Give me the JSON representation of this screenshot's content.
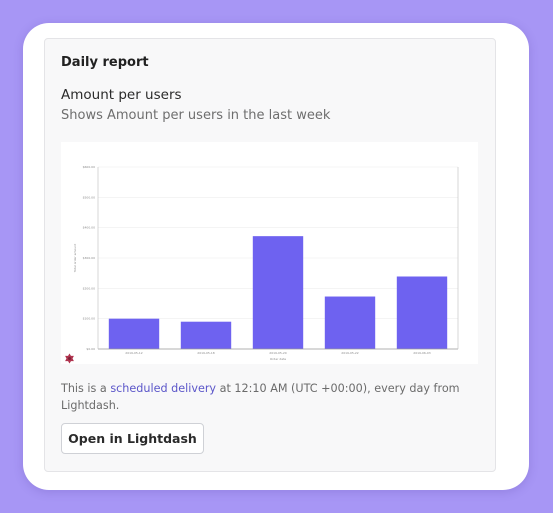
{
  "card": {
    "title": "Daily report",
    "chart_title": "Amount per users",
    "chart_subtitle": "Shows Amount per users in the last week"
  },
  "footer": {
    "prefix": "This is a ",
    "link_label": "scheduled delivery",
    "suffix": " at 12:10 AM (UTC +00:00), every day from Lightdash.",
    "button_label": "Open in Lightdash"
  },
  "colors": {
    "bar": "#6e62f0",
    "background": "#a796f5",
    "logo": "#b0344f"
  },
  "icons": {
    "logo": "lightdash-logo-icon"
  },
  "chart_data": {
    "type": "bar",
    "categories": [
      "2019-05-12",
      "2019-05-18",
      "2019-05-20",
      "2019-05-22",
      "2019-06-03"
    ],
    "values": [
      100,
      90,
      372,
      173,
      239
    ],
    "yticks": [
      "$0.00",
      "$100.00",
      "$200.00",
      "$300.00",
      "$400.00",
      "$500.00",
      "$600.00"
    ],
    "ylim": [
      0,
      600
    ],
    "xlabel": "Order date",
    "ylabel": "Total order amount",
    "grid": true
  }
}
